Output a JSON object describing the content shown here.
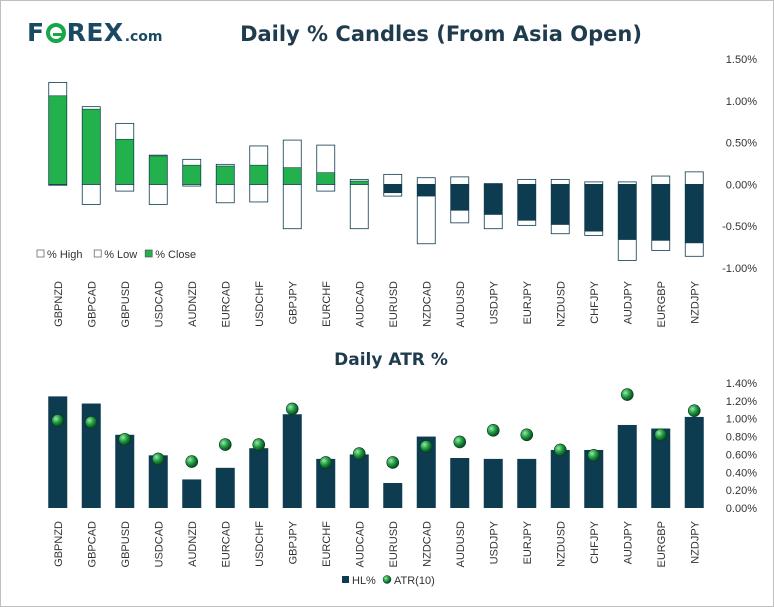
{
  "logo": {
    "brand_pre": "F",
    "brand_post": "REX",
    "dotcom": ".com",
    "accent_color": "#18a64a",
    "brand_color": "#1a4a63"
  },
  "colors": {
    "dark": "#0d3b4f",
    "green": "#22b14c",
    "outline": "#0d3b4f",
    "atr_marker": "#1a9a3e"
  },
  "chart_data": [
    {
      "type": "bar",
      "title": "Daily % Candles (From Asia Open)",
      "categories": [
        "GBPNZD",
        "GBPCAD",
        "GBPUSD",
        "USDCAD",
        "AUDNZD",
        "EURCAD",
        "USDCHF",
        "GBPJPY",
        "EURCHF",
        "AUDCAD",
        "EURUSD",
        "NZDCAD",
        "AUDUSD",
        "USDJPY",
        "EURJPY",
        "NZDUSD",
        "CHFJPY",
        "AUDJPY",
        "EURGBP",
        "NZDJPY"
      ],
      "series": [
        {
          "name": "% High",
          "values": [
            1.22,
            0.93,
            0.73,
            0.35,
            0.3,
            0.24,
            0.46,
            0.53,
            0.47,
            0.06,
            0.12,
            0.08,
            0.09,
            0.01,
            0.06,
            0.06,
            0.03,
            0.03,
            0.1,
            0.15
          ]
        },
        {
          "name": "% Low",
          "values": [
            -0.01,
            -0.24,
            -0.08,
            -0.24,
            -0.02,
            -0.22,
            -0.21,
            -0.53,
            -0.08,
            -0.53,
            -0.14,
            -0.71,
            -0.46,
            -0.53,
            -0.49,
            -0.59,
            -0.61,
            -0.91,
            -0.79,
            -0.86
          ]
        },
        {
          "name": "% Close",
          "values": [
            1.06,
            0.9,
            0.54,
            0.34,
            0.23,
            0.22,
            0.23,
            0.2,
            0.14,
            0.04,
            -0.1,
            -0.14,
            -0.31,
            -0.36,
            -0.43,
            -0.48,
            -0.56,
            -0.66,
            -0.67,
            -0.7
          ]
        }
      ],
      "ylim": [
        -1.0,
        1.5
      ],
      "yticks": [
        "1.50%",
        "1.00%",
        "0.50%",
        "0.00%",
        "-0.50%",
        "-1.00%"
      ],
      "legend_position": "bottom-left"
    },
    {
      "type": "bar",
      "title": "Daily ATR %",
      "categories": [
        "GBPNZD",
        "GBPCAD",
        "GBPUSD",
        "USDCAD",
        "AUDNZD",
        "EURCAD",
        "USDCHF",
        "GBPJPY",
        "EURCHF",
        "AUDCAD",
        "EURUSD",
        "NZDCAD",
        "AUDUSD",
        "USDJPY",
        "EURJPY",
        "NZDUSD",
        "CHFJPY",
        "AUDJPY",
        "EURGBP",
        "NZDJPY"
      ],
      "series": [
        {
          "name": "HL%",
          "values": [
            1.25,
            1.17,
            0.82,
            0.59,
            0.32,
            0.45,
            0.67,
            1.05,
            0.55,
            0.6,
            0.28,
            0.8,
            0.56,
            0.55,
            0.55,
            0.65,
            0.65,
            0.93,
            0.89,
            1.02
          ]
        },
        {
          "name": "ATR(10)",
          "values": [
            0.98,
            0.96,
            0.77,
            0.55,
            0.52,
            0.71,
            0.71,
            1.11,
            0.51,
            0.61,
            0.51,
            0.69,
            0.74,
            0.87,
            0.82,
            0.65,
            0.59,
            1.27,
            0.82,
            1.09
          ]
        }
      ],
      "ylim": [
        0.0,
        1.4
      ],
      "yticks": [
        "1.40%",
        "1.20%",
        "1.00%",
        "0.80%",
        "0.60%",
        "0.40%",
        "0.20%",
        "0.00%"
      ],
      "legend_position": "bottom"
    }
  ]
}
